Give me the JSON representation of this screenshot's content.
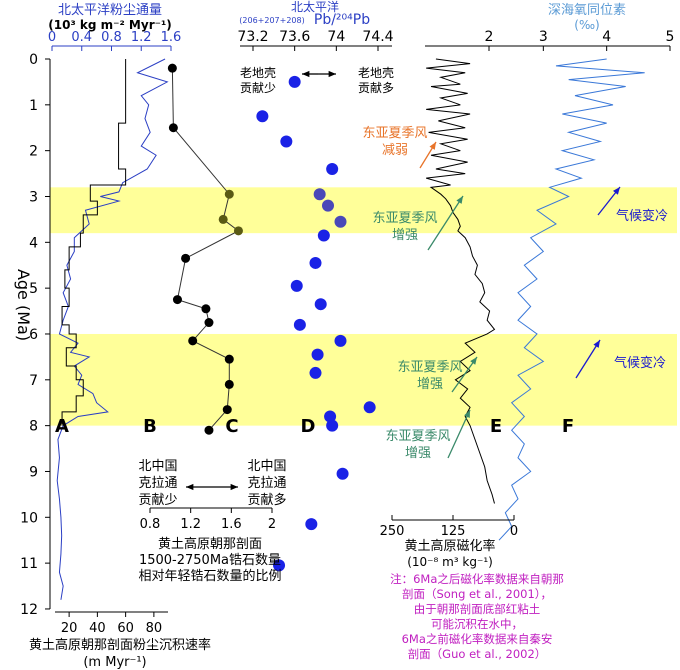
{
  "colors": {
    "band": "#ffff99",
    "blue_curve": "#2b3fc4",
    "dust_line": "#000000",
    "pb_dot": "#1a22e6",
    "zircon_dot": "#000000",
    "zircon_dot_band": "#5a5a14",
    "mag_line": "#000000",
    "oxy_line": "#3a78d8",
    "annot_orange": "#e8742a",
    "annot_green": "#3a8a6a",
    "annot_blue": "#1a1ad0",
    "note_magenta": "#c020c0"
  },
  "labels": {
    "y_axis": "Age (Ma)",
    "top_dust_title": "北太平洋粉尘通量",
    "top_dust_unit": "(10³ kg m⁻² Myr⁻¹)",
    "top_dust_ticks": [
      "0",
      "0.4",
      "0.8",
      "1.2",
      "1.6"
    ],
    "top_pb_title": "北太平洋",
    "top_pb_unit_pre": "(206+207+208)",
    "top_pb_unit_main": "Pb/²⁰⁴Pb",
    "top_pb_ticks": [
      "73.2",
      "73.6",
      "74",
      "74.4"
    ],
    "top_mag_ticks": [
      "2"
    ],
    "top_oxy_title": "深海氧同位素",
    "top_oxy_unit": "(‰)",
    "top_oxy_ticks": [
      "3",
      "4",
      "5"
    ],
    "pb_less": "老地壳\n贡献少",
    "pb_more": "老地壳\n贡献多",
    "bottom_sed_ticks": [
      "20",
      "40",
      "60",
      "80"
    ],
    "bottom_sed_title": "黄土高原朝那剖面粉尘沉积速率",
    "bottom_sed_unit": "(m Myr⁻¹)",
    "zircon_ticks": [
      "0.8",
      "1.2",
      "1.6",
      "2"
    ],
    "zircon_less": "北中国\n克拉通\n贡献少",
    "zircon_more": "北中国\n克拉通\n贡献多",
    "zircon_title": "黄土高原朝那剖面\n1500-2750Ma锆石数量\n相对年轻锆石数量的比例",
    "mag_ticks": [
      "250",
      "125",
      "0"
    ],
    "mag_title": "黄土高原磁化率",
    "mag_unit": "(10⁻⁸ m³ kg⁻¹)",
    "panel_letters": [
      "A",
      "B",
      "C",
      "D",
      "E",
      "F"
    ],
    "annot_weaken": "东亚夏季风\n减弱",
    "annot_strong1": "东亚夏季风\n增强",
    "annot_strong2": "东亚夏季风\n增强",
    "annot_strong3": "东亚夏季风\n增强",
    "annot_cool1": "气候变冷",
    "annot_cool2": "气候变冷",
    "note": "注：6Ma之后磁化率数据来自朝那\n剖面（Song et al., 2001），\n由于朝那剖面底部红粘土\n可能沉积在水中，\n6Ma之前磁化率数据来自秦安\n剖面（Guo et al., 2002）"
  },
  "chart_data": {
    "type": "line",
    "y_axis": {
      "label": "Age (Ma)",
      "ylim": [
        0,
        12
      ],
      "ticks": [
        0,
        1,
        2,
        3,
        4,
        5,
        6,
        7,
        8,
        9,
        10,
        11,
        12
      ],
      "reversed": true
    },
    "shaded_intervals_Ma": [
      [
        2.8,
        3.8
      ],
      [
        6.0,
        8.0
      ]
    ],
    "panels": [
      {
        "id": "A",
        "name": "黄土高原朝那剖面粉尘沉积速率",
        "unit": "m Myr⁻¹",
        "xlim": [
          10,
          90
        ],
        "type": "step",
        "points": [
          [
            60,
            0
          ],
          [
            60,
            1.4
          ],
          [
            55,
            1.4
          ],
          [
            55,
            2.4
          ],
          [
            60,
            2.4
          ],
          [
            60,
            2.75
          ],
          [
            35,
            2.75
          ],
          [
            35,
            3.1
          ],
          [
            40,
            3.1
          ],
          [
            40,
            3.4
          ],
          [
            30,
            3.4
          ],
          [
            30,
            3.8
          ],
          [
            28,
            3.8
          ],
          [
            28,
            4.1
          ],
          [
            20,
            4.1
          ],
          [
            20,
            4.6
          ],
          [
            17,
            4.6
          ],
          [
            17,
            5.0
          ],
          [
            20,
            5.0
          ],
          [
            20,
            5.4
          ],
          [
            15,
            5.4
          ],
          [
            15,
            5.8
          ],
          [
            20,
            5.8
          ],
          [
            20,
            6.0
          ],
          [
            25,
            6.0
          ],
          [
            25,
            6.3
          ],
          [
            18,
            6.3
          ],
          [
            18,
            6.7
          ],
          [
            25,
            6.7
          ],
          [
            25,
            7.0
          ],
          [
            30,
            7.0
          ],
          [
            30,
            7.35
          ],
          [
            25,
            7.35
          ],
          [
            25,
            7.7
          ],
          [
            15,
            7.7
          ],
          [
            15,
            8.0
          ]
        ]
      },
      {
        "id": "B",
        "name": "北太平洋粉尘通量",
        "unit": "10³ kg m⁻² Myr⁻¹",
        "xlim": [
          0,
          1.6
        ],
        "points": [
          [
            1.52,
            0
          ],
          [
            1.15,
            0.3
          ],
          [
            1.55,
            0.5
          ],
          [
            1.2,
            0.8
          ],
          [
            1.3,
            1.0
          ],
          [
            1.25,
            1.3
          ],
          [
            1.32,
            1.6
          ],
          [
            1.2,
            1.9
          ],
          [
            1.4,
            2.1
          ],
          [
            1.28,
            2.4
          ],
          [
            0.95,
            2.7
          ],
          [
            0.9,
            2.9
          ],
          [
            0.65,
            3.0
          ],
          [
            0.9,
            3.1
          ],
          [
            0.45,
            3.3
          ],
          [
            0.5,
            3.6
          ],
          [
            0.3,
            3.9
          ],
          [
            0.3,
            4.2
          ],
          [
            0.2,
            4.5
          ],
          [
            0.25,
            4.8
          ],
          [
            0.15,
            5.1
          ],
          [
            0.22,
            5.4
          ],
          [
            0.15,
            5.7
          ],
          [
            0.1,
            6.0
          ],
          [
            0.35,
            6.2
          ],
          [
            0.25,
            6.4
          ],
          [
            0.5,
            6.5
          ],
          [
            0.3,
            6.7
          ],
          [
            0.4,
            6.9
          ],
          [
            0.35,
            7.1
          ],
          [
            0.55,
            7.3
          ],
          [
            0.6,
            7.5
          ],
          [
            0.75,
            7.7
          ],
          [
            0.35,
            7.8
          ],
          [
            0.15,
            8.0
          ],
          [
            0.08,
            8.3
          ],
          [
            0.1,
            8.7
          ],
          [
            0.07,
            9.2
          ],
          [
            0.1,
            9.6
          ],
          [
            0.12,
            10.0
          ],
          [
            0.13,
            10.4
          ],
          [
            0.12,
            10.8
          ],
          [
            0.1,
            11.2
          ],
          [
            0.15,
            11.5
          ],
          [
            0.12,
            11.8
          ]
        ]
      },
      {
        "id": "C",
        "name": "朝那剖面1500-2750Ma锆石比例",
        "xlim": [
          0.8,
          2.0
        ],
        "points": [
          [
            1.02,
            0.2
          ],
          [
            1.03,
            1.5
          ],
          [
            1.58,
            2.95
          ],
          [
            1.52,
            3.5
          ],
          [
            1.67,
            3.75
          ],
          [
            1.15,
            4.35
          ],
          [
            1.07,
            5.25
          ],
          [
            1.35,
            5.45
          ],
          [
            1.38,
            5.75
          ],
          [
            1.22,
            6.15
          ],
          [
            1.58,
            6.55
          ],
          [
            1.58,
            7.1
          ],
          [
            1.56,
            7.65
          ],
          [
            1.38,
            8.1
          ]
        ]
      },
      {
        "id": "D",
        "name": "北太平洋 (206+207+208)Pb/204Pb",
        "xlim": [
          73.2,
          74.4
        ],
        "points": [
          [
            73.6,
            0.5
          ],
          [
            73.29,
            1.25
          ],
          [
            73.52,
            1.8
          ],
          [
            73.96,
            2.4
          ],
          [
            73.84,
            2.95
          ],
          [
            73.92,
            3.2
          ],
          [
            74.04,
            3.55
          ],
          [
            73.88,
            3.85
          ],
          [
            73.8,
            4.45
          ],
          [
            73.62,
            4.95
          ],
          [
            73.85,
            5.35
          ],
          [
            73.65,
            5.8
          ],
          [
            74.04,
            6.15
          ],
          [
            73.82,
            6.45
          ],
          [
            73.8,
            6.85
          ],
          [
            74.32,
            7.6
          ],
          [
            73.94,
            7.8
          ],
          [
            73.96,
            8.0
          ],
          [
            74.06,
            9.05
          ],
          [
            73.76,
            10.15
          ],
          [
            73.45,
            11.05
          ]
        ]
      },
      {
        "id": "E",
        "name": "黄土高原磁化率",
        "unit": "10⁻⁸ m³ kg⁻¹",
        "xlim": [
          250,
          0
        ],
        "points": [
          [
            160,
            0
          ],
          [
            90,
            0.1
          ],
          [
            180,
            0.2
          ],
          [
            100,
            0.3
          ],
          [
            150,
            0.4
          ],
          [
            110,
            0.55
          ],
          [
            170,
            0.6
          ],
          [
            95,
            0.75
          ],
          [
            150,
            0.85
          ],
          [
            110,
            1.0
          ],
          [
            180,
            1.1
          ],
          [
            90,
            1.2
          ],
          [
            155,
            1.35
          ],
          [
            100,
            1.5
          ],
          [
            175,
            1.6
          ],
          [
            95,
            1.75
          ],
          [
            150,
            1.85
          ],
          [
            110,
            2.0
          ],
          [
            170,
            2.1
          ],
          [
            95,
            2.25
          ],
          [
            160,
            2.4
          ],
          [
            100,
            2.5
          ],
          [
            180,
            2.6
          ],
          [
            130,
            2.75
          ],
          [
            170,
            2.8
          ],
          [
            150,
            2.95
          ],
          [
            140,
            3.05
          ],
          [
            130,
            3.2
          ],
          [
            125,
            3.35
          ],
          [
            115,
            3.5
          ],
          [
            110,
            3.65
          ],
          [
            115,
            3.75
          ],
          [
            100,
            3.9
          ],
          [
            90,
            4.1
          ],
          [
            85,
            4.3
          ],
          [
            75,
            4.5
          ],
          [
            80,
            4.7
          ],
          [
            65,
            4.9
          ],
          [
            60,
            5.1
          ],
          [
            70,
            5.3
          ],
          [
            50,
            5.5
          ],
          [
            55,
            5.7
          ],
          [
            40,
            5.9
          ],
          [
            55,
            6.0
          ],
          [
            100,
            6.2
          ],
          [
            80,
            6.4
          ],
          [
            110,
            6.6
          ],
          [
            90,
            6.8
          ],
          [
            120,
            7.0
          ],
          [
            95,
            7.2
          ],
          [
            110,
            7.4
          ],
          [
            90,
            7.6
          ],
          [
            100,
            7.8
          ],
          [
            90,
            8.0
          ],
          [
            80,
            8.3
          ],
          [
            70,
            8.6
          ],
          [
            60,
            8.9
          ],
          [
            55,
            9.2
          ],
          [
            45,
            9.5
          ],
          [
            40,
            9.7
          ]
        ]
      },
      {
        "id": "F",
        "name": "深海氧同位素",
        "unit": "‰",
        "xlim": [
          2,
          5
        ],
        "points": [
          [
            4.0,
            0
          ],
          [
            3.2,
            0.15
          ],
          [
            4.6,
            0.3
          ],
          [
            3.4,
            0.45
          ],
          [
            4.3,
            0.6
          ],
          [
            3.5,
            0.8
          ],
          [
            4.1,
            1.0
          ],
          [
            3.3,
            1.2
          ],
          [
            4.0,
            1.4
          ],
          [
            3.4,
            1.6
          ],
          [
            3.9,
            1.8
          ],
          [
            3.3,
            2.0
          ],
          [
            3.8,
            2.2
          ],
          [
            3.2,
            2.4
          ],
          [
            3.6,
            2.6
          ],
          [
            3.1,
            2.8
          ],
          [
            3.4,
            3.0
          ],
          [
            2.9,
            3.3
          ],
          [
            3.2,
            3.6
          ],
          [
            2.8,
            3.9
          ],
          [
            3.0,
            4.2
          ],
          [
            2.7,
            4.5
          ],
          [
            2.9,
            4.8
          ],
          [
            2.6,
            5.1
          ],
          [
            2.8,
            5.4
          ],
          [
            2.6,
            5.7
          ],
          [
            2.9,
            6.0
          ],
          [
            2.7,
            6.3
          ],
          [
            3.0,
            6.6
          ],
          [
            2.6,
            6.9
          ],
          [
            2.8,
            7.2
          ],
          [
            2.5,
            7.5
          ],
          [
            2.7,
            7.8
          ],
          [
            2.5,
            8.1
          ],
          [
            2.7,
            8.4
          ],
          [
            2.6,
            8.7
          ],
          [
            2.8,
            9.0
          ],
          [
            2.5,
            9.3
          ],
          [
            2.6,
            9.6
          ],
          [
            2.4,
            9.9
          ],
          [
            2.5,
            10.2
          ],
          [
            2.3,
            10.5
          ]
        ]
      }
    ]
  }
}
